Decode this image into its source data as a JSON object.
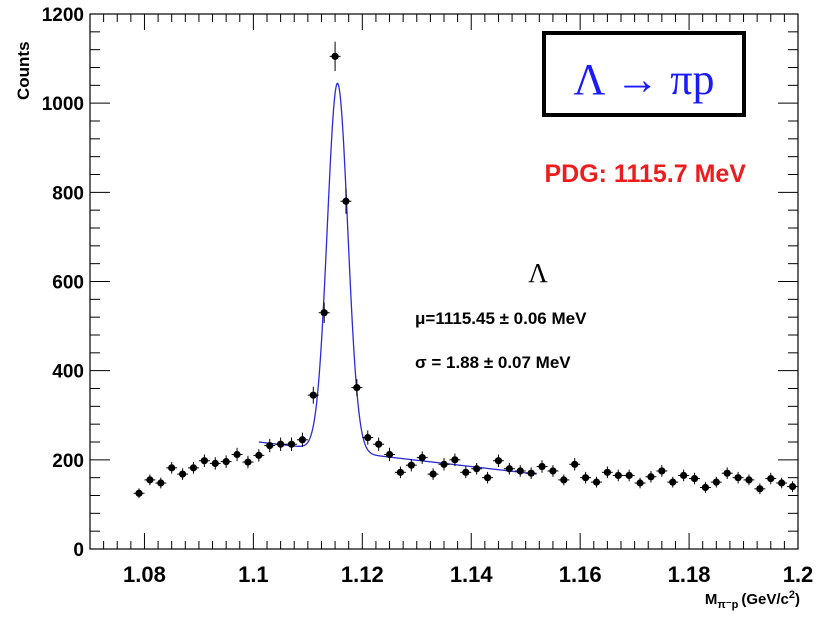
{
  "chart_data": {
    "type": "scatter",
    "title": "",
    "ylabel": "Counts",
    "xlabel_main": "M",
    "xlabel_sub": "π⁻p",
    "xlabel_unit": "(GeV/c",
    "xlabel_sup": "2",
    "xlabel_end": ")",
    "xlim": [
      1.07,
      1.2
    ],
    "ylim": [
      0,
      1200
    ],
    "x_ticks": [
      1.08,
      1.1,
      1.12,
      1.14,
      1.16,
      1.18,
      1.2
    ],
    "x_tick_labels": [
      "1.08",
      "1.1",
      "1.12",
      "1.14",
      "1.16",
      "1.18",
      "1.2"
    ],
    "y_ticks": [
      0,
      200,
      400,
      600,
      800,
      1000,
      1200
    ],
    "y_tick_labels": [
      "0",
      "200",
      "400",
      "600",
      "800",
      "1000",
      "1200"
    ],
    "grid": false,
    "bin_half_width": 0.001,
    "series": [
      {
        "type": "scatter",
        "color": "#000000",
        "x": [
          1.079,
          1.081,
          1.083,
          1.085,
          1.087,
          1.089,
          1.091,
          1.093,
          1.095,
          1.097,
          1.099,
          1.101,
          1.103,
          1.105,
          1.107,
          1.109,
          1.111,
          1.113,
          1.115,
          1.117,
          1.119,
          1.121,
          1.123,
          1.125,
          1.127,
          1.129,
          1.131,
          1.133,
          1.135,
          1.137,
          1.139,
          1.141,
          1.143,
          1.145,
          1.147,
          1.149,
          1.151,
          1.153,
          1.155,
          1.157,
          1.159,
          1.161,
          1.163,
          1.165,
          1.167,
          1.169,
          1.171,
          1.173,
          1.175,
          1.177,
          1.179,
          1.181,
          1.183,
          1.185,
          1.187,
          1.189,
          1.191,
          1.193,
          1.195,
          1.197,
          1.199
        ],
        "y": [
          125,
          155,
          148,
          182,
          168,
          182,
          198,
          192,
          196,
          212,
          195,
          210,
          232,
          235,
          235,
          245,
          345,
          530,
          1105,
          780,
          362,
          250,
          235,
          212,
          172,
          188,
          205,
          168,
          190,
          200,
          172,
          180,
          160,
          198,
          180,
          175,
          170,
          185,
          175,
          155,
          190,
          160,
          150,
          172,
          165,
          165,
          148,
          162,
          175,
          150,
          165,
          158,
          138,
          150,
          170,
          160,
          155,
          135,
          158,
          148,
          140
        ],
        "errors": [
          11,
          12,
          12,
          13,
          13,
          13,
          14,
          14,
          14,
          15,
          14,
          14,
          15,
          15,
          15,
          16,
          19,
          23,
          33,
          28,
          19,
          16,
          15,
          15,
          13,
          14,
          14,
          13,
          14,
          14,
          13,
          13,
          13,
          14,
          13,
          13,
          13,
          14,
          13,
          12,
          14,
          13,
          12,
          13,
          13,
          13,
          12,
          13,
          13,
          12,
          13,
          13,
          12,
          12,
          13,
          13,
          12,
          12,
          13,
          12,
          12
        ]
      },
      {
        "type": "line",
        "color": "#2b2bd6",
        "fit": {
          "x_range": [
            1.101,
            1.152
          ],
          "peak_mean": 1.11545,
          "peak_sigma": 0.00188,
          "peak_amplitude": 825,
          "bg_left": 240,
          "bg_right": 168
        }
      }
    ],
    "annotations": {
      "decay_label": "Λ → πp",
      "pdg": "PDG: 1115.7 MeV",
      "lambda_symbol": "Λ",
      "mu_text": "μ=1115.45 ± 0.06 MeV",
      "sigma_text": "σ = 1.88 ± 0.07 MeV"
    },
    "colors": {
      "decay_label": "#1a1aff",
      "pdg": "#ee1c1c",
      "fit": "#2b2bd6"
    }
  }
}
